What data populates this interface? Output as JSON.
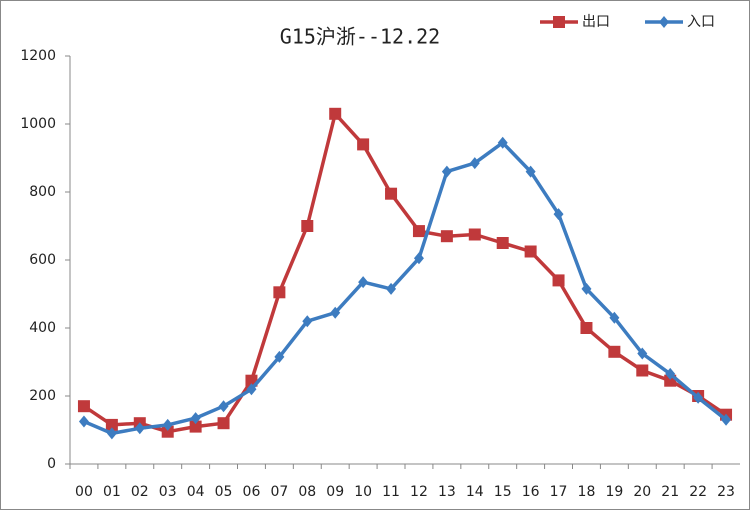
{
  "chart_data": {
    "type": "line",
    "title": "G15沪浙--12.22",
    "categories": [
      "00",
      "01",
      "02",
      "03",
      "04",
      "05",
      "06",
      "07",
      "08",
      "09",
      "10",
      "11",
      "12",
      "13",
      "14",
      "15",
      "16",
      "17",
      "18",
      "19",
      "20",
      "21",
      "22",
      "23"
    ],
    "series": [
      {
        "name": "出口",
        "color": "#c0393b",
        "marker": "square",
        "values": [
          170,
          115,
          120,
          95,
          110,
          120,
          245,
          505,
          700,
          1030,
          940,
          795,
          685,
          670,
          675,
          650,
          625,
          540,
          400,
          330,
          275,
          245,
          200,
          145
        ]
      },
      {
        "name": "入口",
        "color": "#3d7cc0",
        "marker": "diamond",
        "values": [
          125,
          90,
          105,
          115,
          135,
          170,
          220,
          315,
          420,
          445,
          535,
          515,
          605,
          860,
          885,
          945,
          860,
          735,
          515,
          430,
          325,
          265,
          195,
          130
        ]
      }
    ],
    "ylim": [
      0,
      1200
    ],
    "yticks": [
      0,
      200,
      400,
      600,
      800,
      1000,
      1200
    ],
    "grid": false,
    "legend": "top-right"
  }
}
